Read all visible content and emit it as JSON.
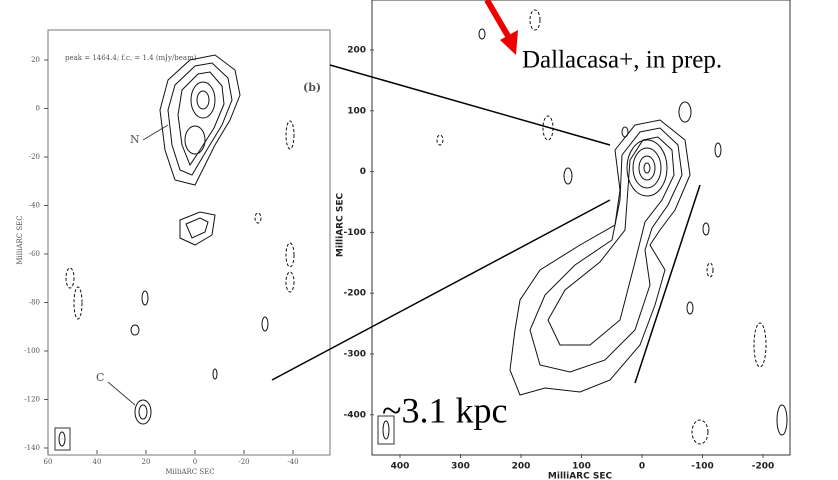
{
  "left_panel": {
    "annotation": "peak = 1464.4;  f.c. = 1.4 (mJy/beam)",
    "panel_label": "(b)",
    "component_labels": [
      "N",
      "C"
    ],
    "x_axis_label": "MilliARC SEC",
    "y_axis_label": "MilliARC SEC",
    "xticks": [
      60,
      40,
      20,
      0,
      -20,
      -40
    ],
    "yticks": [
      20,
      0,
      -20,
      -40,
      -60,
      -80,
      -100,
      -120,
      -140
    ]
  },
  "right_panel": {
    "x_axis_label": "MilliARC SEC",
    "y_axis_label": "MilliARC SEC",
    "xticks": [
      400,
      300,
      200,
      100,
      0,
      -100,
      -200
    ],
    "yticks": [
      200,
      100,
      0,
      -100,
      -200,
      -300,
      -400
    ]
  },
  "overlay": {
    "citation": "Dallacasa+, in prep.",
    "scale_label": "~3.1 kpc"
  }
}
